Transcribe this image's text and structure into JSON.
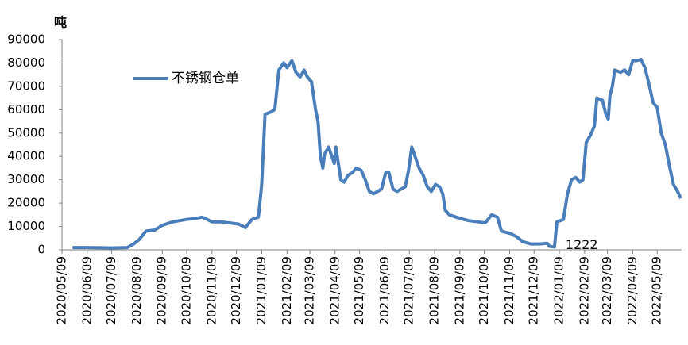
{
  "chart_data": {
    "type": "line",
    "y_label": "吨",
    "xlim": [
      "2020/05/09",
      "2022/06/08"
    ],
    "xticks": [
      "2020/05/09",
      "2020/06/09",
      "2020/07/09",
      "2020/08/09",
      "2020/09/09",
      "2020/10/09",
      "2020/11/09",
      "2020/12/09",
      "2021/01/09",
      "2021/02/09",
      "2021/03/09",
      "2021/04/09",
      "2021/05/09",
      "2021/06/09",
      "2021/07/09",
      "2021/08/09",
      "2021/09/09",
      "2021/10/09",
      "2021/11/09",
      "2021/12/09",
      "2022/01/09",
      "2022/02/09",
      "2022/03/09",
      "2022/04/09",
      "2022/05/09"
    ],
    "ylim": [
      0,
      90000
    ],
    "yticks": [
      0,
      10000,
      20000,
      30000,
      40000,
      50000,
      60000,
      70000,
      80000,
      90000
    ],
    "grid": false,
    "x": [
      "2020/05/22",
      "2020/06/09",
      "2020/06/25",
      "2020/07/09",
      "2020/07/28",
      "2020/08/05",
      "2020/08/12",
      "2020/08/20",
      "2020/08/31",
      "2020/09/09",
      "2020/09/22",
      "2020/10/09",
      "2020/10/20",
      "2020/10/28",
      "2020/11/03",
      "2020/11/09",
      "2020/11/20",
      "2020/12/01",
      "2020/12/12",
      "2020/12/20",
      "2020/12/28",
      "2021/01/05",
      "2021/01/09",
      "2021/01/13",
      "2021/01/20",
      "2021/01/25",
      "2021/01/30",
      "2021/02/05",
      "2021/02/09",
      "2021/02/15",
      "2021/02/20",
      "2021/02/25",
      "2021/03/02",
      "2021/03/06",
      "2021/03/11",
      "2021/03/16",
      "2021/03/19",
      "2021/03/22",
      "2021/03/25",
      "2021/03/27",
      "2021/04/01",
      "2021/04/05",
      "2021/04/08",
      "2021/04/10",
      "2021/04/16",
      "2021/04/20",
      "2021/04/25",
      "2021/04/30",
      "2021/05/05",
      "2021/05/11",
      "2021/05/16",
      "2021/05/21",
      "2021/05/26",
      "2021/05/31",
      "2021/06/05",
      "2021/06/10",
      "2021/06/14",
      "2021/06/19",
      "2021/06/24",
      "2021/06/29",
      "2021/07/04",
      "2021/07/08",
      "2021/07/12",
      "2021/07/16",
      "2021/07/21",
      "2021/07/26",
      "2021/07/31",
      "2021/08/05",
      "2021/08/10",
      "2021/08/15",
      "2021/08/19",
      "2021/08/22",
      "2021/08/27",
      "2021/09/09",
      "2021/09/20",
      "2021/10/01",
      "2021/10/10",
      "2021/10/18",
      "2021/10/25",
      "2021/10/30",
      "2021/11/10",
      "2021/11/18",
      "2021/11/25",
      "2021/12/05",
      "2021/12/15",
      "2021/12/25",
      "2021/12/28",
      "2022/01/03",
      "2022/01/06",
      "2022/01/14",
      "2022/01/19",
      "2022/01/24",
      "2022/01/29",
      "2022/02/03",
      "2022/02/07",
      "2022/02/11",
      "2022/02/16",
      "2022/02/21",
      "2022/02/24",
      "2022/03/03",
      "2022/03/07",
      "2022/03/10",
      "2022/03/12",
      "2022/03/15",
      "2022/03/18",
      "2022/03/25",
      "2022/03/30",
      "2022/04/04",
      "2022/04/09",
      "2022/04/14",
      "2022/04/19",
      "2022/04/24",
      "2022/04/29",
      "2022/05/04",
      "2022/05/09",
      "2022/05/14",
      "2022/05/19",
      "2022/05/24",
      "2022/05/29",
      "2022/06/03",
      "2022/06/07"
    ],
    "series": [
      {
        "name": "不锈钢仓单",
        "color": "#4a7ebb",
        "values": [
          1000,
          1000,
          900,
          800,
          1000,
          2500,
          4500,
          8000,
          8500,
          10500,
          12000,
          13000,
          13500,
          14000,
          13000,
          12000,
          12000,
          11500,
          11000,
          9500,
          13000,
          14000,
          28000,
          58000,
          59000,
          60000,
          77000,
          80000,
          78000,
          81000,
          76000,
          74000,
          77000,
          74000,
          72000,
          60000,
          55000,
          40000,
          35000,
          41000,
          44000,
          40000,
          37000,
          44000,
          30000,
          29000,
          32000,
          33000,
          35000,
          34000,
          30000,
          25000,
          24000,
          25000,
          26000,
          33000,
          33000,
          26000,
          25000,
          26000,
          27000,
          34000,
          44000,
          40000,
          35000,
          32000,
          27000,
          25000,
          28000,
          27000,
          24000,
          17000,
          15000,
          13500,
          12500,
          12000,
          11500,
          15000,
          14000,
          8000,
          7000,
          5500,
          3500,
          2500,
          2500,
          2800,
          1500,
          1222,
          12000,
          13000,
          24000,
          30000,
          31000,
          29000,
          30000,
          46000,
          49000,
          53000,
          65000,
          64000,
          58000,
          56000,
          66000,
          70000,
          77000,
          76000,
          77000,
          75000,
          81000,
          81000,
          81500,
          78000,
          71000,
          63000,
          61000,
          50000,
          45000,
          36000,
          28000,
          25000,
          22000
        ]
      }
    ],
    "annotations": [
      {
        "x": "2022/01/03",
        "value": 1222
      }
    ]
  }
}
